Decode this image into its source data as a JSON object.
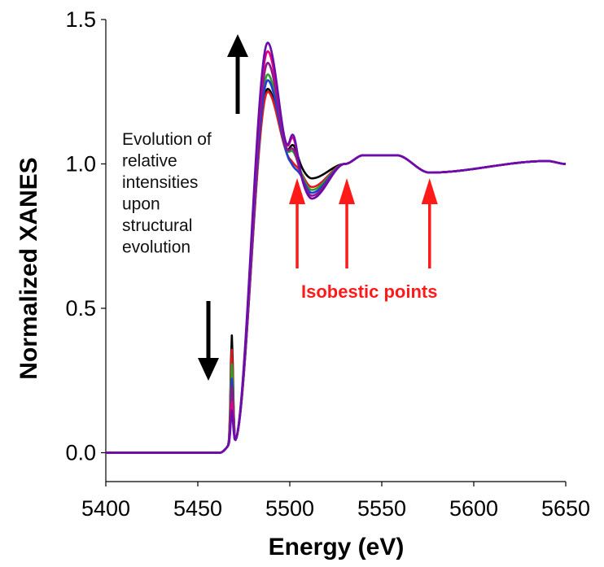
{
  "chart_data": {
    "type": "line",
    "title": "",
    "xlabel": "Energy (eV)",
    "ylabel": "Normalized XANES",
    "xlim": [
      5400,
      5650
    ],
    "ylim": [
      -0.1,
      1.5
    ],
    "xticks": [
      5400,
      5450,
      5500,
      5550,
      5600,
      5650
    ],
    "xtick_labels": [
      "5400",
      "5450",
      "5500",
      "5550",
      "5600",
      "5650"
    ],
    "yticks": [
      0.0,
      0.5,
      1.0,
      1.5
    ],
    "ytick_labels": [
      "0.0",
      "0.5",
      "1.0",
      "1.5"
    ],
    "grid": false,
    "legend": "none",
    "series": [
      {
        "color": "#000000",
        "peak": 1.26,
        "preedge": 0.45,
        "shoulder": 1.06,
        "valley": 0.95
      },
      {
        "color": "#e41a1c",
        "peak": 1.25,
        "preedge": 0.4,
        "shoulder": 1.0,
        "valley": 0.92
      },
      {
        "color": "#2ca02c",
        "peak": 1.31,
        "preedge": 0.35,
        "shoulder": 1.04,
        "valley": 0.91
      },
      {
        "color": "#1f3fd0",
        "peak": 1.29,
        "preedge": 0.3,
        "shoulder": 0.99,
        "valley": 0.9
      },
      {
        "color": "#8b1a8b",
        "peak": 1.35,
        "preedge": 0.27,
        "shoulder": 1.05,
        "valley": 0.89
      },
      {
        "color": "#e6007e",
        "peak": 1.39,
        "preedge": 0.22,
        "shoulder": 1.09,
        "valley": 0.88
      },
      {
        "color": "#6a0dad",
        "peak": 1.42,
        "preedge": 0.19,
        "shoulder": 1.1,
        "valley": 0.88
      }
    ],
    "isobestic_points_energy": [
      5504,
      5531,
      5576
    ],
    "colors": {
      "annotation_red": "#ff1a1a",
      "annotation_black": "#000000"
    }
  },
  "annotations": {
    "evolution_text": [
      "Evolution of",
      "relative",
      "intensities",
      "upon",
      "structural",
      "evolution"
    ],
    "isobestic_label": "Isobestic points"
  }
}
